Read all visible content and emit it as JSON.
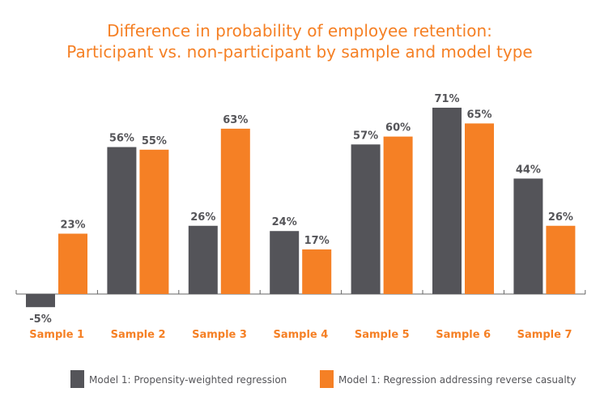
{
  "chart_data": {
    "type": "bar",
    "title": [
      "Difference in probability of employee retention:",
      "Participant vs. non-participant by sample and model type"
    ],
    "categories": [
      "Sample 1",
      "Sample 2",
      "Sample 3",
      "Sample 4",
      "Sample 5",
      "Sample 6",
      "Sample 7"
    ],
    "series": [
      {
        "name": "Model 1: Propensity-weighted regression",
        "color": "#545459",
        "values": [
          -5,
          56,
          26,
          24,
          57,
          71,
          44
        ]
      },
      {
        "name": "Model 1: Regression addressing reverse casualty",
        "color": "#f58025",
        "values": [
          23,
          55,
          63,
          17,
          60,
          65,
          26
        ]
      }
    ],
    "value_suffix": "%",
    "ylim": [
      -5,
      71
    ],
    "grid": false,
    "legend_placement": "bottom",
    "title_color": "#f58025",
    "category_label_color": "#f58025"
  }
}
